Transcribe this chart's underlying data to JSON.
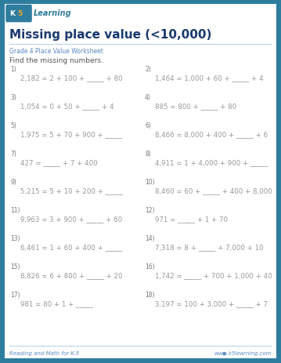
{
  "title": "Missing place value (<10,000)",
  "subtitle": "Grade 4 Place Value Worksheet",
  "instruction": "Find the missing numbers.",
  "border_color": "#2e7d9e",
  "title_color": "#1a3a6e",
  "subtitle_color": "#5a8abf",
  "body_color": "#555555",
  "num_color": "#777777",
  "eq_color": "#999999",
  "footer_left": "Reading and Math for K-5",
  "footer_right": "www.k5learning.com",
  "problems": [
    [
      "1)",
      "2,182 = 2 + 100 + _____ + 80",
      "2)",
      "1,464 = 1,000 + 60 + _____ + 4"
    ],
    [
      "3)",
      "1,054 = 0 + 50 + _____ + 4",
      "4)",
      "885 = 800 + _____ + 80"
    ],
    [
      "5)",
      "1,975 = 5 + 70 + 900 + _____",
      "6)",
      "8,466 = 8,000 + 400 + _____ + 6"
    ],
    [
      "7)",
      "427 = _____ + 7 + 400",
      "8)",
      "4,911 = 1 + 4,000 + 900 + _____"
    ],
    [
      "9)",
      "5,215 = 5 + 10 + 200 + _____",
      "10)",
      "8,460 = 60 + _____ + 400 + 8,000"
    ],
    [
      "11)",
      "9,963 = 3 + 900 + _____ + 60",
      "12)",
      "971 = _____ + 1 + 70"
    ],
    [
      "13)",
      "6,461 = 1 + 60 + 400 + _____",
      "14)",
      "7,318 = 8 + _____ + 7,000 + 10"
    ],
    [
      "15)",
      "8,826 = 6 + 800 + _____ + 20",
      "16)",
      "1,742 = _____ + 700 + 1,000 + 40"
    ],
    [
      "17)",
      "981 = 80 + 1 + _____",
      "18)",
      "3,197 = 100 + 3,000 + _____ + 7"
    ]
  ],
  "figsize": [
    3.59,
    4.64
  ],
  "dpi": 100
}
